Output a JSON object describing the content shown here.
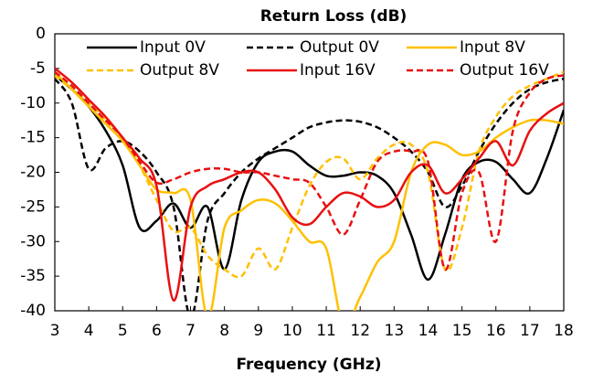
{
  "chart_data": {
    "type": "line",
    "title": "Return Loss (dB)",
    "x_label": "Frequency (GHz)",
    "x": [
      3,
      3.5,
      4,
      4.5,
      5,
      5.5,
      6,
      6.5,
      7,
      7.5,
      8,
      8.5,
      9,
      9.5,
      10,
      10.5,
      11,
      11.5,
      12,
      12.5,
      13,
      13.5,
      14,
      14.5,
      15,
      15.5,
      16,
      16.5,
      17,
      17.5,
      18
    ],
    "series": [
      {
        "name": "Input 0V",
        "color": "#000000",
        "dash": false,
        "values": [
          -6,
          -8,
          -10.5,
          -14,
          -19,
          -28,
          -27,
          -24.5,
          -28,
          -25,
          -34,
          -24,
          -18.5,
          -17,
          -17,
          -19,
          -20.5,
          -20.5,
          -20,
          -20.5,
          -23,
          -29,
          -35.5,
          -29,
          -21,
          -18.5,
          -18.5,
          -21,
          -23,
          -18,
          -11
        ]
      },
      {
        "name": "Output 0V",
        "color": "#000000",
        "dash": true,
        "values": [
          -6.5,
          -10,
          -19.5,
          -16.5,
          -15.5,
          -17,
          -20,
          -25,
          -41,
          -27,
          -23,
          -20,
          -18,
          -16.5,
          -15,
          -13.5,
          -12.8,
          -12.5,
          -12.7,
          -13.5,
          -15,
          -17,
          -20,
          -25,
          -22,
          -17,
          -13,
          -10,
          -8,
          -7,
          -6.5
        ]
      },
      {
        "name": "Input 8V",
        "color": "#ffc000",
        "dash": false,
        "values": [
          -5.5,
          -8,
          -10.5,
          -13,
          -15.5,
          -19,
          -22.5,
          -23,
          -24,
          -41,
          -28,
          -25.5,
          -24,
          -24.5,
          -27,
          -30,
          -31,
          -42,
          -38,
          -33,
          -30,
          -20,
          -16,
          -16,
          -17.5,
          -17,
          -15,
          -13.5,
          -12.5,
          -12.5,
          -13
        ]
      },
      {
        "name": "Output 8V",
        "color": "#ffc000",
        "dash": true,
        "values": [
          -6,
          -8,
          -10,
          -12.5,
          -15,
          -19,
          -24,
          -28.5,
          -28,
          -32,
          -34,
          -35,
          -31,
          -34,
          -28,
          -22,
          -18.5,
          -18,
          -21,
          -18,
          -16,
          -16,
          -20,
          -34,
          -28,
          -17,
          -12,
          -9,
          -7.5,
          -6.5,
          -5.5
        ]
      },
      {
        "name": "Input 16V",
        "color": "#e81010",
        "dash": false,
        "values": [
          -5,
          -7,
          -9.5,
          -12,
          -15,
          -18,
          -22,
          -38.5,
          -25,
          -22,
          -21,
          -20,
          -20,
          -22.5,
          -26.5,
          -27.5,
          -25,
          -23,
          -23.5,
          -25,
          -24,
          -20,
          -19,
          -23,
          -21,
          -18,
          -15.5,
          -19,
          -14,
          -11.5,
          -10
        ]
      },
      {
        "name": "Output 16V",
        "color": "#e81010",
        "dash": true,
        "values": [
          -5.5,
          -7.5,
          -10,
          -12.5,
          -15,
          -18.5,
          -21.5,
          -21,
          -20,
          -19.5,
          -19.5,
          -20,
          -20,
          -20.5,
          -21,
          -21.5,
          -25,
          -29,
          -24,
          -18.5,
          -17,
          -17,
          -18.5,
          -34,
          -23,
          -20,
          -30,
          -14,
          -8.5,
          -6.5,
          -6
        ]
      }
    ],
    "xlim": [
      3,
      18
    ],
    "xticks": [
      3,
      4,
      5,
      6,
      7,
      8,
      9,
      10,
      11,
      12,
      13,
      14,
      15,
      16,
      17,
      18
    ],
    "ylim": [
      -40,
      0
    ],
    "yticks": [
      0,
      -5,
      -10,
      -15,
      -20,
      -25,
      -30,
      -35,
      -40
    ],
    "grid": false,
    "legend": "top"
  }
}
